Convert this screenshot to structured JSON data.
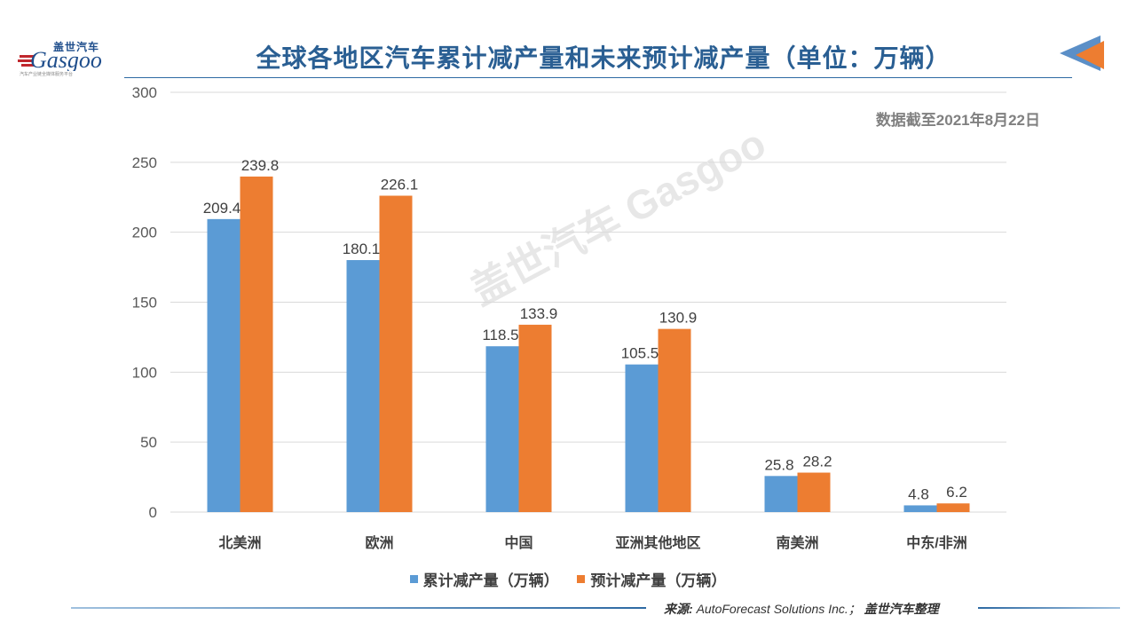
{
  "header": {
    "logo_cn": "盖世汽车",
    "logo_en": "Gasgoo",
    "logo_tagline": "汽车产业链全媒体服务平台",
    "title": "全球各地区汽车累计减产量和未来预计减产量（单位：万辆）"
  },
  "note": "数据截至2021年8月22日",
  "watermark": "盖世汽车 Gasgoo",
  "colors": {
    "series1": "#5B9BD5",
    "series2": "#ED7D31",
    "title": "#2A5F93",
    "grid": "#D9D9D9"
  },
  "chart_data": {
    "type": "bar",
    "title": "全球各地区汽车累计减产量和未来预计减产量（单位：万辆）",
    "categories": [
      "北美洲",
      "欧洲",
      "中国",
      "亚洲其他地区",
      "南美洲",
      "中东/非洲"
    ],
    "series": [
      {
        "name": "累计减产量（万辆）",
        "values": [
          209.4,
          180.1,
          118.5,
          105.5,
          25.8,
          4.8
        ]
      },
      {
        "name": "预计减产量（万辆）",
        "values": [
          239.8,
          226.1,
          133.9,
          130.9,
          28.2,
          6.2
        ]
      }
    ],
    "ylim": [
      0,
      300
    ],
    "yticks": [
      0,
      50,
      100,
      150,
      200,
      250,
      300
    ],
    "xlabel": "",
    "ylabel": "",
    "grid": true,
    "legend": "bottom"
  },
  "footer": {
    "source_label": "来源:",
    "source_text": "AutoForecast Solutions Inc.；",
    "source_org": "盖世汽车整理"
  }
}
